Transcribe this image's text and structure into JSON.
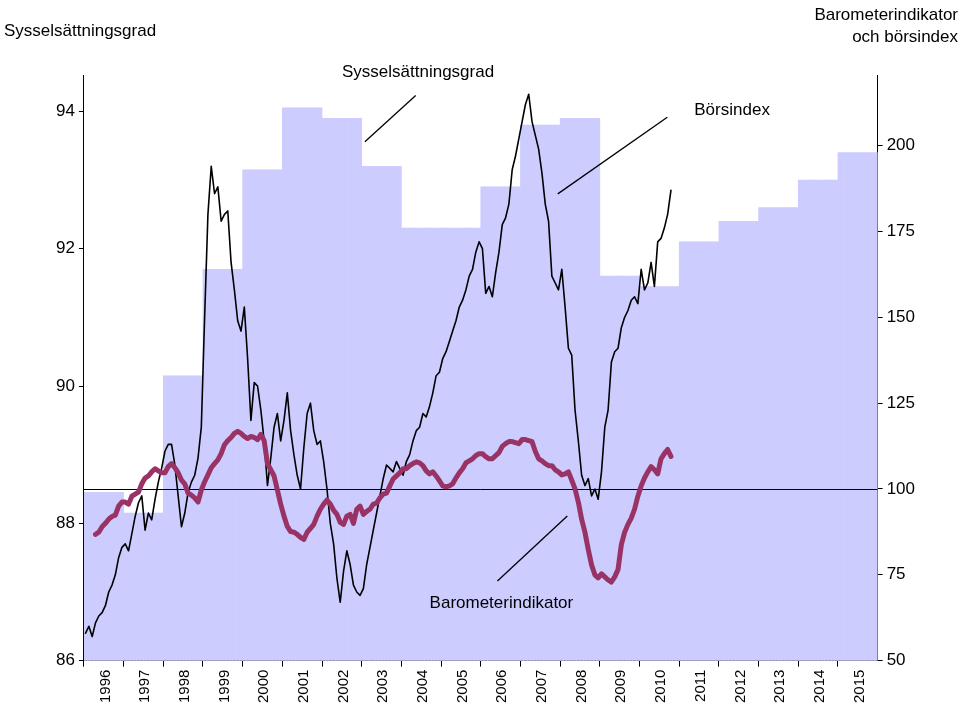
{
  "chart_data": {
    "type": "bar",
    "y_label": "Sysselsättningsgrad",
    "y2_label": "Barometerindikator och börsindex",
    "categories": [
      null,
      null,
      null,
      null,
      null,
      null,
      "1996",
      null,
      null,
      null,
      null,
      null,
      null,
      null,
      null,
      null,
      null,
      null,
      "1997",
      null,
      null,
      null,
      null,
      null,
      null,
      null,
      null,
      null,
      null,
      null,
      "1998",
      null,
      null,
      null,
      null,
      null,
      null,
      null,
      null,
      null,
      null,
      null,
      "1999",
      null,
      null,
      null,
      null,
      null,
      null,
      null,
      null,
      null,
      null,
      null,
      "2000",
      null,
      null,
      null,
      null,
      null,
      null,
      null,
      null,
      null,
      null,
      null,
      "2001",
      null,
      null,
      null,
      null,
      null,
      null,
      null,
      null,
      null,
      null,
      null,
      "2002",
      null,
      null,
      null,
      null,
      null,
      null,
      null,
      null,
      null,
      null,
      null,
      "2003",
      null,
      null,
      null,
      null,
      null,
      null,
      null,
      null,
      null,
      null,
      null,
      "2004",
      null,
      null,
      null,
      null,
      null,
      null,
      null,
      null,
      null,
      null,
      null,
      "2005",
      null,
      null,
      null,
      null,
      null,
      null,
      null,
      null,
      null,
      null,
      null,
      "2006",
      null,
      null,
      null,
      null,
      null,
      null,
      null,
      null,
      null,
      null,
      null,
      "2007",
      null,
      null,
      null,
      null,
      null,
      null,
      null,
      null,
      null,
      null,
      null,
      "2008",
      null,
      null,
      null,
      null,
      null,
      null,
      null,
      null,
      null,
      null,
      null,
      "2009",
      null,
      null,
      null,
      null,
      null,
      null,
      null,
      null,
      null,
      null,
      null,
      "2010",
      null,
      null,
      null,
      null,
      null,
      null,
      null,
      null,
      null,
      null,
      null,
      "2011",
      null,
      null,
      null,
      null,
      null,
      null,
      null,
      null,
      null,
      null,
      null,
      "2012",
      null,
      null,
      null,
      null,
      null,
      null,
      null,
      null,
      null,
      null,
      null,
      "2013",
      null,
      null,
      null,
      null,
      null,
      null,
      null,
      null,
      null,
      null,
      null,
      "2014",
      null,
      null,
      null,
      null,
      null,
      null,
      null,
      null,
      null,
      null,
      null,
      "2015",
      null,
      null,
      null,
      null,
      null
    ],
    "series": [
      {
        "name": "Sysselsättningsgrad",
        "type": "bar",
        "color": "#ccccff",
        "axis": "y",
        "values": [
          88.45,
          88.45,
          88.45,
          88.45,
          88.45,
          88.45,
          88.45,
          88.45,
          88.45,
          88.45,
          88.45,
          88.45,
          88.15,
          88.15,
          88.15,
          88.15,
          88.15,
          88.15,
          88.15,
          88.15,
          88.15,
          88.15,
          88.15,
          88.15,
          90.15,
          90.15,
          90.15,
          90.15,
          90.15,
          90.15,
          90.15,
          90.15,
          90.15,
          90.15,
          90.15,
          90.15,
          91.7,
          91.7,
          91.7,
          91.7,
          91.7,
          91.7,
          91.7,
          91.7,
          91.7,
          91.7,
          91.7,
          91.7,
          93.15,
          93.15,
          93.15,
          93.15,
          93.15,
          93.15,
          93.15,
          93.15,
          93.15,
          93.15,
          93.15,
          93.15,
          94.05,
          94.05,
          94.05,
          94.05,
          94.05,
          94.05,
          94.05,
          94.05,
          94.05,
          94.05,
          94.05,
          94.05,
          93.9,
          93.9,
          93.9,
          93.9,
          93.9,
          93.9,
          93.9,
          93.9,
          93.9,
          93.9,
          93.9,
          93.9,
          93.2,
          93.2,
          93.2,
          93.2,
          93.2,
          93.2,
          93.2,
          93.2,
          93.2,
          93.2,
          93.2,
          93.2,
          92.3,
          92.3,
          92.3,
          92.3,
          92.3,
          92.3,
          92.3,
          92.3,
          92.3,
          92.3,
          92.3,
          92.3,
          92.3,
          92.3,
          92.3,
          92.3,
          92.3,
          92.3,
          92.3,
          92.3,
          92.3,
          92.3,
          92.3,
          92.3,
          92.9,
          92.9,
          92.9,
          92.9,
          92.9,
          92.9,
          92.9,
          92.9,
          92.9,
          92.9,
          92.9,
          92.9,
          93.8,
          93.8,
          93.8,
          93.8,
          93.8,
          93.8,
          93.8,
          93.8,
          93.8,
          93.8,
          93.8,
          93.8,
          93.9,
          93.9,
          93.9,
          93.9,
          93.9,
          93.9,
          93.9,
          93.9,
          93.9,
          93.9,
          93.9,
          93.9,
          91.6,
          91.6,
          91.6,
          91.6,
          91.6,
          91.6,
          91.6,
          91.6,
          91.6,
          91.6,
          91.6,
          91.6,
          91.45,
          91.45,
          91.45,
          91.45,
          91.45,
          91.45,
          91.45,
          91.45,
          91.45,
          91.45,
          91.45,
          91.45,
          92.1,
          92.1,
          92.1,
          92.1,
          92.1,
          92.1,
          92.1,
          92.1,
          92.1,
          92.1,
          92.1,
          92.1,
          92.4,
          92.4,
          92.4,
          92.4,
          92.4,
          92.4,
          92.4,
          92.4,
          92.4,
          92.4,
          92.4,
          92.4,
          92.6,
          92.6,
          92.6,
          92.6,
          92.6,
          92.6,
          92.6,
          92.6,
          92.6,
          92.6,
          92.6,
          92.6,
          93.0,
          93.0,
          93.0,
          93.0,
          93.0,
          93.0,
          93.0,
          93.0,
          93.0,
          93.0,
          93.0,
          93.0,
          93.4,
          93.4,
          93.4,
          93.4,
          93.4,
          93.4,
          93.4,
          93.4,
          93.4,
          93.4,
          93.4,
          93.4
        ]
      },
      {
        "name": "Börsindex",
        "type": "line",
        "color": "#000000",
        "axis": "y2",
        "values": [
          58,
          60,
          57,
          61,
          63,
          64,
          66,
          70,
          72,
          75,
          80,
          83,
          84,
          82,
          87,
          92,
          96,
          98,
          88,
          93,
          91,
          97,
          102,
          106,
          111,
          113,
          113,
          107,
          98,
          89,
          93,
          99,
          102,
          104,
          109,
          118,
          150,
          180,
          194,
          186,
          188,
          178,
          180,
          181,
          166,
          158,
          149,
          146,
          153,
          138,
          120,
          131,
          130,
          123,
          114,
          101,
          109,
          118,
          122,
          114,
          120,
          128,
          117,
          110,
          104,
          100,
          112,
          122,
          125,
          117,
          113,
          114,
          108,
          100,
          90,
          84,
          74,
          67,
          76,
          82,
          78,
          72,
          70,
          69,
          71,
          78,
          83,
          88,
          93,
          98,
          103,
          107,
          106,
          105,
          108,
          106,
          104,
          108,
          110,
          114,
          117,
          118,
          122,
          121,
          124,
          128,
          133,
          134,
          138,
          140,
          143,
          146,
          149,
          153,
          155,
          158,
          162,
          164,
          169,
          172,
          170,
          157,
          159,
          156,
          163,
          169,
          177,
          179,
          183,
          193,
          197,
          202,
          207,
          212,
          215,
          207,
          203,
          199,
          192,
          183,
          178,
          162,
          160,
          158,
          164,
          153,
          141,
          139,
          123,
          114,
          104,
          101,
          103,
          98,
          100,
          97,
          105,
          118,
          123,
          137,
          140,
          141,
          147,
          150,
          152,
          155,
          156,
          154,
          164,
          158,
          160,
          166,
          159,
          172,
          173,
          176,
          180,
          187,
          null,
          null,
          null,
          null,
          null,
          null,
          null,
          null,
          null,
          null,
          null,
          null,
          null,
          null,
          null,
          null,
          null,
          null,
          null,
          null,
          null,
          null,
          null,
          null,
          null,
          null,
          null,
          null,
          null,
          null,
          null,
          null,
          null,
          null,
          null,
          null,
          null,
          null,
          null,
          null,
          null,
          null,
          null,
          null,
          null,
          null,
          null,
          null,
          null,
          null,
          null,
          null,
          null,
          null,
          null,
          null,
          null,
          null,
          null,
          null,
          null,
          null
        ]
      },
      {
        "name": "Barometerindikator",
        "type": "line",
        "color": "#993366",
        "axis": "y2",
        "values": [
          null,
          null,
          null,
          86.8,
          87.4,
          89,
          90,
          91.2,
          92,
          92.4,
          95,
          96.2,
          96.2,
          95.6,
          97.9,
          98.5,
          99.1,
          101.5,
          103.2,
          103.8,
          105,
          105.9,
          105.3,
          104.7,
          104.7,
          106.5,
          107.4,
          106.2,
          104.7,
          102.6,
          101.5,
          98.8,
          98.2,
          97.4,
          96.2,
          99.7,
          102.1,
          104.1,
          106.2,
          107.4,
          108.5,
          110.3,
          112.9,
          114.1,
          115,
          116.2,
          116.8,
          116.2,
          115.3,
          114.7,
          115.3,
          115,
          114.4,
          115.9,
          114.1,
          107.4,
          105.6,
          103.8,
          99.7,
          95.6,
          92.1,
          89.1,
          87.6,
          87.4,
          86.8,
          85.9,
          85.3,
          87.4,
          88.5,
          89.7,
          92.1,
          94.1,
          95.6,
          96.8,
          95.6,
          93.8,
          92.6,
          90.3,
          89.7,
          92.1,
          92.6,
          90,
          94.1,
          95,
          92.6,
          93.5,
          94.1,
          95.6,
          95.9,
          97.4,
          98.5,
          98.8,
          100.9,
          102.9,
          103.8,
          104.7,
          105.9,
          105.9,
          106.8,
          107.4,
          107.9,
          107.6,
          106.8,
          105.3,
          104.4,
          105,
          103.8,
          102.4,
          100.9,
          100.6,
          100.9,
          101.5,
          103.2,
          104.7,
          105.9,
          107.6,
          108.2,
          108.8,
          109.7,
          110.3,
          110.3,
          109.4,
          108.8,
          108.8,
          109.7,
          110.6,
          112.4,
          113.2,
          113.8,
          113.8,
          113.5,
          113.2,
          114.4,
          114.4,
          114.1,
          113.8,
          110.9,
          108.8,
          108.2,
          107.4,
          106.8,
          106.8,
          105.6,
          105,
          104.1,
          104.4,
          105,
          102.6,
          100,
          96.2,
          91.2,
          87.4,
          82.4,
          77.9,
          75,
          74.1,
          75.3,
          74.4,
          73.5,
          72.9,
          74.4,
          76.5,
          83.8,
          87.4,
          89.7,
          91.5,
          94.1,
          97.9,
          100.9,
          103.2,
          105,
          106.5,
          105.6,
          104.4,
          108.8,
          110.3,
          111.5,
          109.5,
          null,
          null,
          null,
          null,
          null,
          null,
          null,
          null,
          null,
          null,
          null,
          null,
          null,
          null,
          null,
          null,
          null,
          null,
          null,
          null,
          null,
          null,
          null,
          null,
          null,
          null,
          null,
          null,
          null,
          null,
          null,
          null,
          null,
          null,
          null,
          null,
          null,
          null,
          null,
          null,
          null,
          null,
          null,
          null,
          null,
          null,
          null,
          null,
          null,
          null,
          null,
          null,
          null,
          null,
          null,
          null,
          null,
          null,
          null,
          null,
          null,
          null
        ]
      }
    ],
    "ylim": [
      86,
      94.53
    ],
    "yticks": [
      86,
      88,
      90,
      92,
      94
    ],
    "y2lim": [
      50,
      220.6
    ],
    "y2ticks": [
      50,
      75,
      100,
      125,
      150,
      175,
      200
    ],
    "reference_lines": [
      {
        "y": 100,
        "axis": "y2"
      }
    ],
    "grid": false
  }
}
